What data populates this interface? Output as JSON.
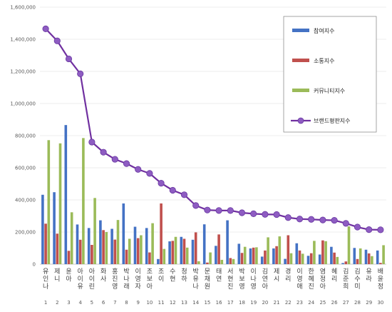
{
  "chart_data": {
    "type": "bar",
    "title": "",
    "xlabel": "",
    "ylabel": "",
    "ylim": [
      0,
      1600000
    ],
    "yticks": [
      "0",
      "200,000",
      "400,000",
      "600,000",
      "800,000",
      "1,000,000",
      "1,200,000",
      "1,400,000",
      "1,600,000"
    ],
    "grid": true,
    "legend_position": "top-right",
    "categories": [
      "유인나",
      "제니",
      "윤아",
      "아이유",
      "아이린",
      "화사",
      "홍진영",
      "박나래",
      "이영자",
      "조보아",
      "조이",
      "수현",
      "청하",
      "박유나",
      "문채원",
      "태연",
      "서현진",
      "박보영",
      "이나영",
      "김연아",
      "제시",
      "경리",
      "이영애",
      "한혜진",
      "염정아",
      "혜리",
      "김준희",
      "김수미",
      "유라",
      "배윤정"
    ],
    "category_numbers": [
      "1",
      "2",
      "3",
      "4",
      "5",
      "6",
      "7",
      "8",
      "9",
      "10",
      "11",
      "12",
      "13",
      "14",
      "15",
      "16",
      "17",
      "18",
      "19",
      "20",
      "21",
      "22",
      "23",
      "24",
      "25",
      "26",
      "27",
      "28",
      "29",
      "30"
    ],
    "series": [
      {
        "name": "참여지수",
        "kind": "bar",
        "color": "#4472c4",
        "values": [
          432000,
          448000,
          866000,
          247000,
          225000,
          273000,
          220000,
          378000,
          233000,
          225000,
          32000,
          142000,
          170000,
          152000,
          248000,
          114000,
          273000,
          127000,
          98000,
          47000,
          98000,
          33000,
          130000,
          52000,
          60000,
          108000,
          7000,
          101000,
          90000,
          85000
        ]
      },
      {
        "name": "소통지수",
        "kind": "bar",
        "color": "#c0504d",
        "values": [
          252000,
          190000,
          83000,
          152000,
          120000,
          212000,
          153000,
          90000,
          162000,
          73000,
          378000,
          145000,
          158000,
          198000,
          10000,
          185000,
          38000,
          70000,
          103000,
          85000,
          112000,
          180000,
          85000,
          68000,
          148000,
          72000,
          17000,
          32000,
          67000,
          8000
        ]
      },
      {
        "name": "커뮤니티지수",
        "kind": "bar",
        "color": "#9bbb59",
        "values": [
          772000,
          752000,
          323000,
          785000,
          412000,
          200000,
          275000,
          158000,
          180000,
          255000,
          95000,
          170000,
          103000,
          18000,
          73000,
          27000,
          32000,
          108000,
          105000,
          167000,
          173000,
          68000,
          65000,
          145000,
          143000,
          45000,
          235000,
          98000,
          50000,
          118000
        ]
      },
      {
        "name": "브랜드평판지수",
        "kind": "line",
        "color": "#7030a0",
        "values": [
          1465000,
          1390000,
          1278000,
          1185000,
          760000,
          697000,
          653000,
          626000,
          590000,
          565000,
          504000,
          460000,
          432000,
          365000,
          337000,
          334000,
          334000,
          320000,
          314000,
          310000,
          309000,
          290000,
          281000,
          279000,
          275000,
          273000,
          254000,
          231000,
          215000,
          214000
        ]
      }
    ]
  }
}
